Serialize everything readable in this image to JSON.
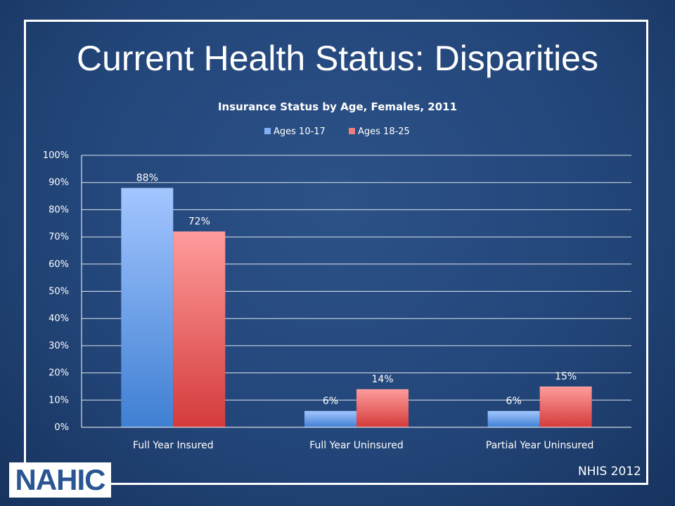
{
  "slide": {
    "title": "Current Health Status: Disparities",
    "logo_text": "NAHIC",
    "source": "NHIS 2012"
  },
  "colors": {
    "background": "#23467a",
    "series_1": "#7fb0f4",
    "series_2": "#f07f7f",
    "text": "#ffffff"
  },
  "chart_data": {
    "type": "bar",
    "title": "Insurance Status by Age, Females, 2011",
    "categories": [
      "Full Year Insured",
      "Full Year Uninsured",
      "Partial Year Uninsured"
    ],
    "series": [
      {
        "name": "Ages 10-17",
        "values": [
          88,
          6,
          6
        ],
        "labels": [
          "88%",
          "6%",
          "6%"
        ]
      },
      {
        "name": "Ages 18-25",
        "values": [
          72,
          14,
          15
        ],
        "labels": [
          "72%",
          "14%",
          "15%"
        ]
      }
    ],
    "ylim": [
      0,
      100
    ],
    "yticks": [
      "0%",
      "10%",
      "20%",
      "30%",
      "40%",
      "50%",
      "60%",
      "70%",
      "80%",
      "90%",
      "100%"
    ],
    "grid": true,
    "legend_position": "top"
  }
}
